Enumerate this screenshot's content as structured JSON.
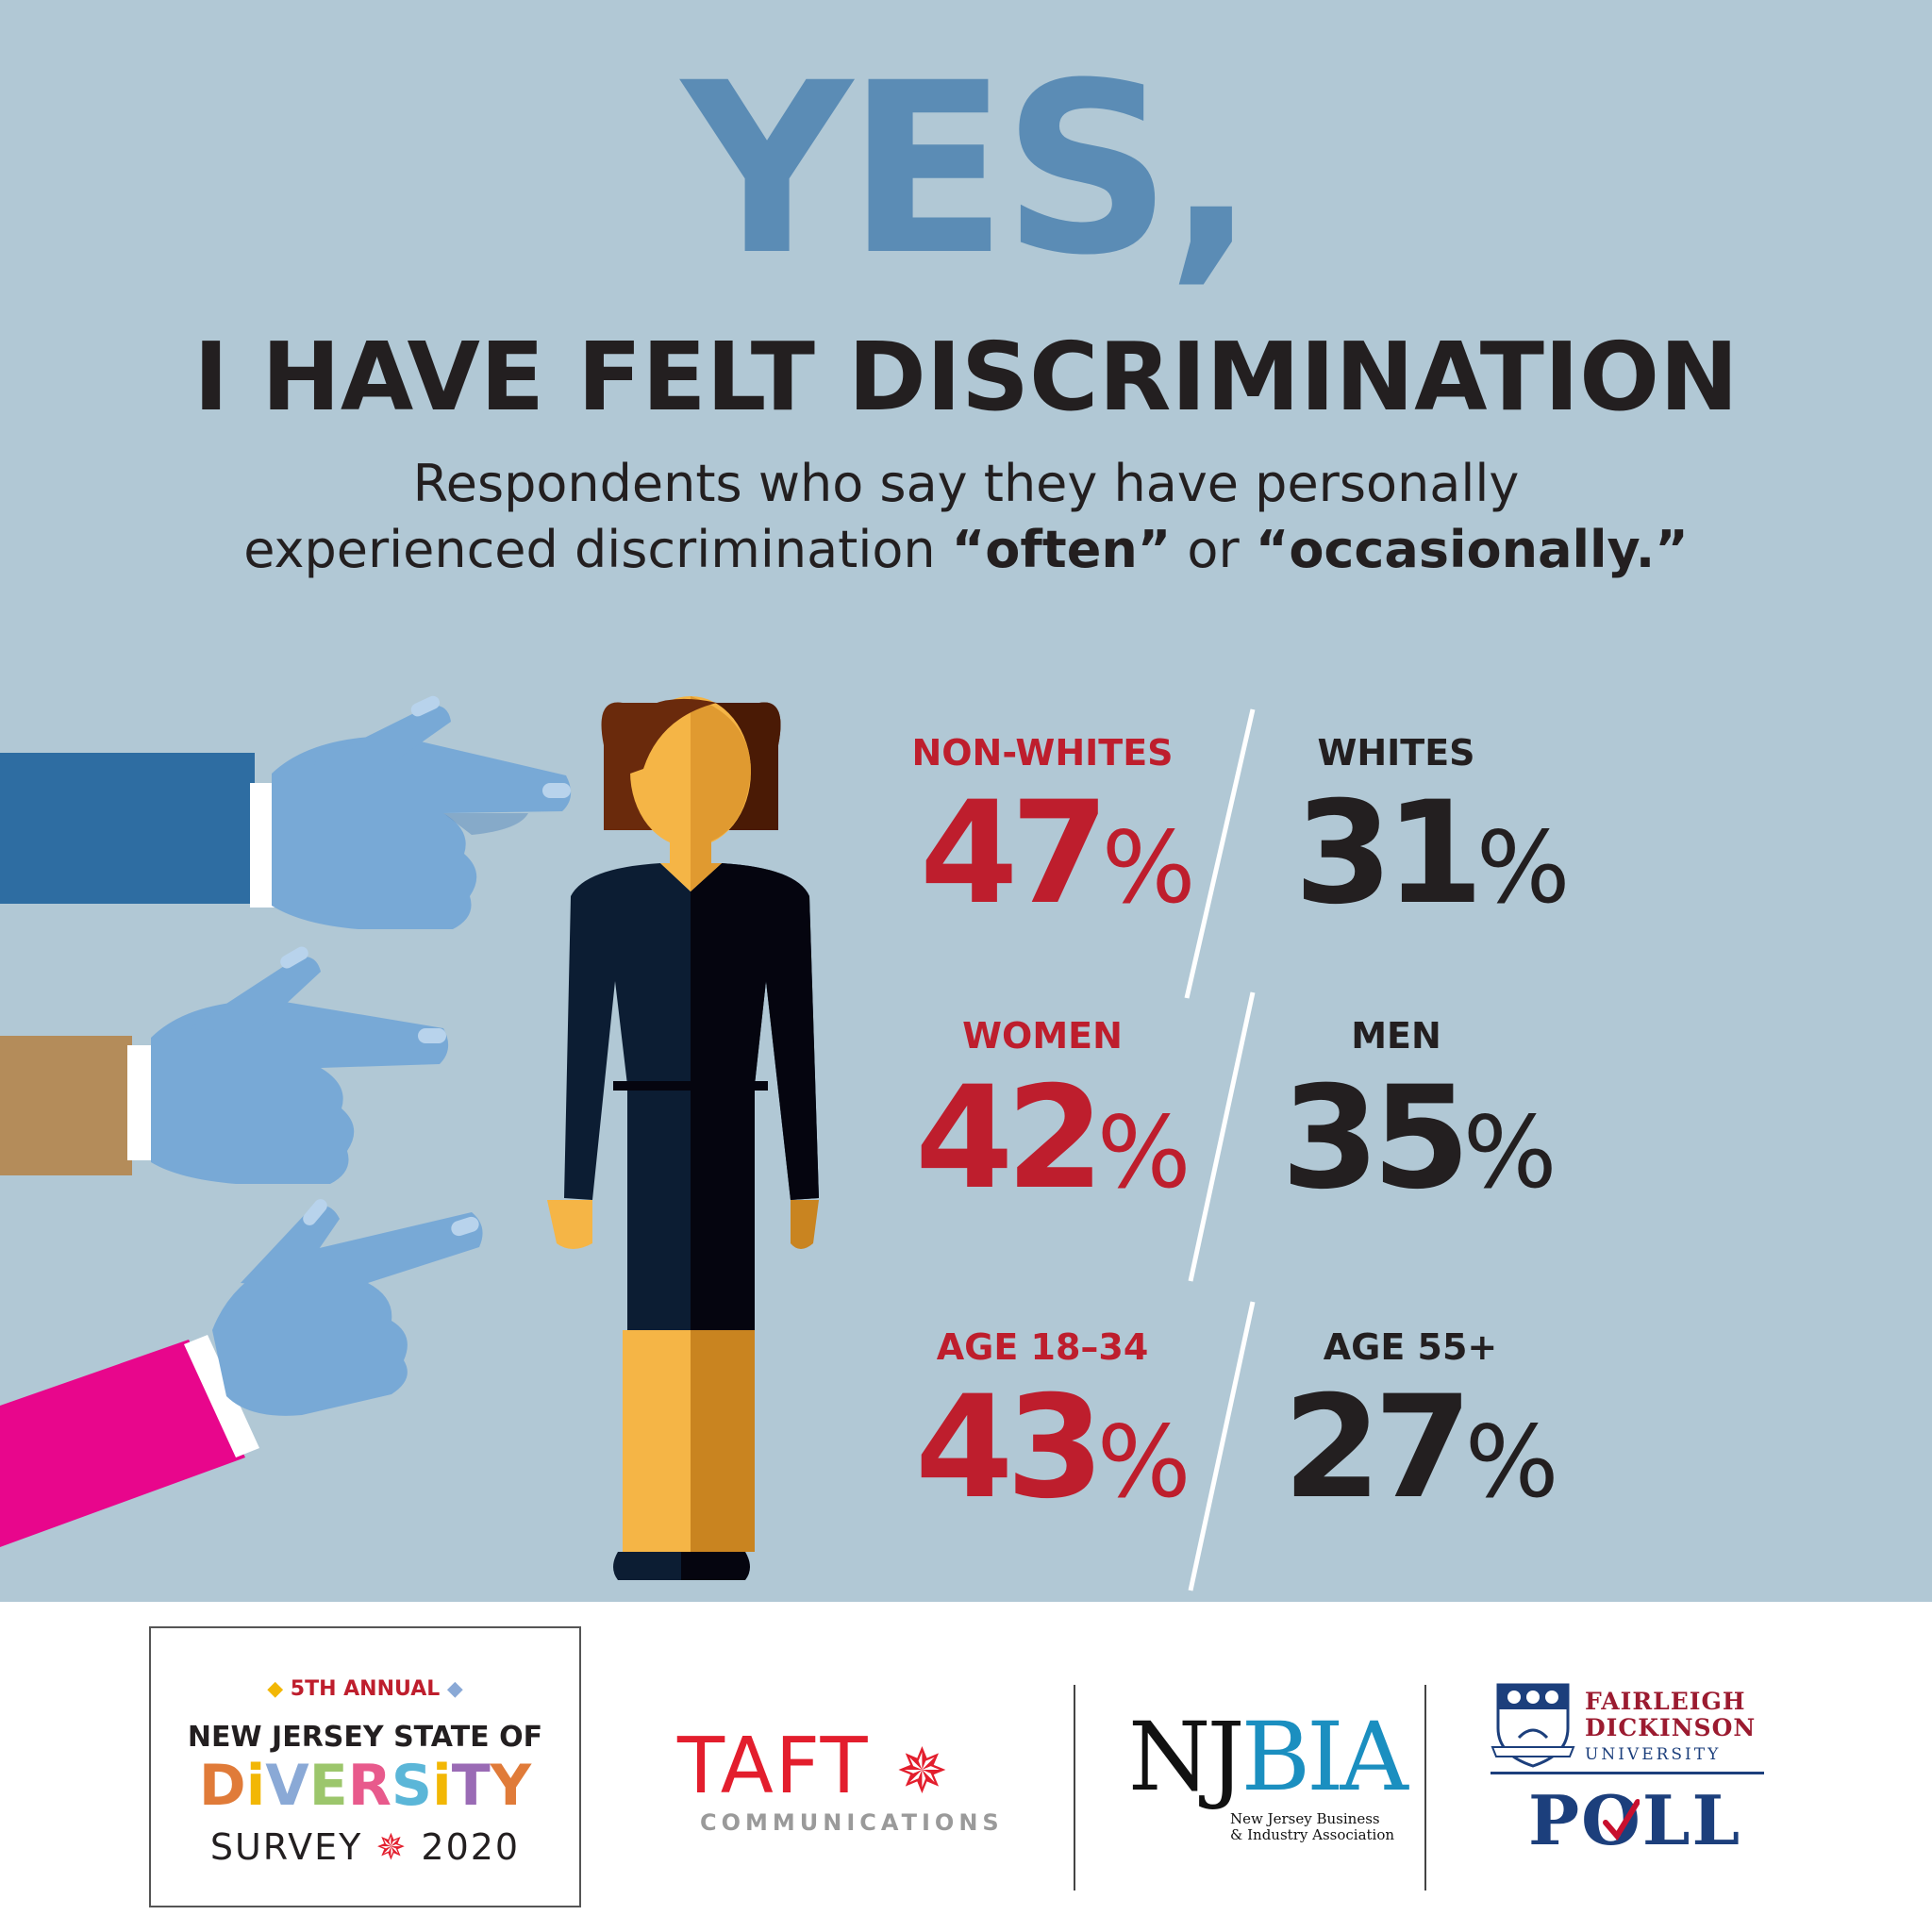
{
  "header": {
    "yes": "YES,",
    "headline": "I HAVE FELT DISCRIMINATION",
    "subtitle_line1": "Respondents who say they have personally",
    "subtitle_line2_prefix": "experienced discrimination ",
    "subtitle_often": "“often”",
    "subtitle_or": " or ",
    "subtitle_occasionally": "“occasionally.”"
  },
  "stats": [
    {
      "left_label": "NON-WHITES",
      "left_value": "47",
      "right_label": "WHITES",
      "right_value": "31"
    },
    {
      "left_label": "WOMEN",
      "left_value": "42",
      "right_label": "MEN",
      "right_value": "35"
    },
    {
      "left_label": "AGE 18–34",
      "left_value": "43",
      "right_label": "AGE 55+",
      "right_value": "27"
    }
  ],
  "percent_symbol": "%",
  "colors": {
    "background": "#b1c8d5",
    "accent_red": "#be1e2d",
    "yes_blue": "#5b8cb5",
    "dark_text": "#231f20"
  },
  "footer": {
    "survey": {
      "annual": "5TH ANNUAL",
      "line1": "NEW JERSEY STATE OF",
      "diversity_letters": [
        {
          "ch": "D",
          "color": "#e07b39"
        },
        {
          "ch": "i",
          "color": "#f2b705"
        },
        {
          "ch": "V",
          "color": "#8aa9d6"
        },
        {
          "ch": "E",
          "color": "#9cc66c"
        },
        {
          "ch": "R",
          "color": "#e85a8c"
        },
        {
          "ch": "S",
          "color": "#5bb6d8"
        },
        {
          "ch": "i",
          "color": "#f2b705"
        },
        {
          "ch": "T",
          "color": "#9a6bb5"
        },
        {
          "ch": "Y",
          "color": "#e07b39"
        }
      ],
      "survey_word": "SURVEY",
      "year": "2020"
    },
    "taft": {
      "word": "TAFT",
      "sub": "COMMUNICATIONS"
    },
    "njbia": {
      "nj": "NJ",
      "bia": "BIA",
      "sub_line1": "New Jersey Business",
      "sub_line2": "& Industry Association"
    },
    "fdu": {
      "line1": "FAIRLEIGH",
      "line2": "DICKINSON",
      "line3": "UNIVERSITY",
      "poll": "POLL"
    }
  }
}
